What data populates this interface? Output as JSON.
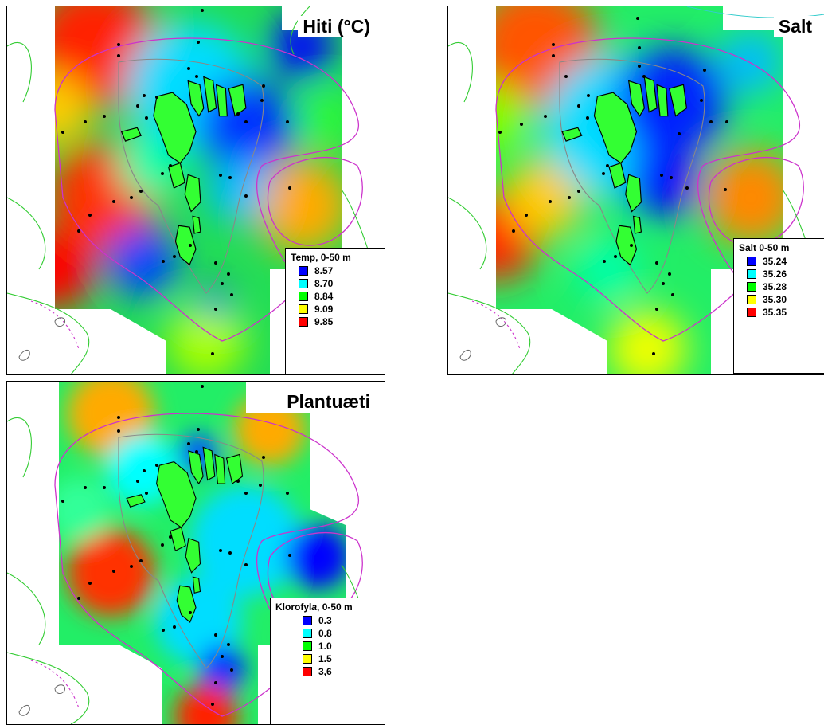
{
  "panels": [
    {
      "title": "Hiti (°C)",
      "legend_title": "Temp, 0-50 m",
      "legend": [
        {
          "label": "8.57",
          "color": "#0000ff"
        },
        {
          "label": "8.70",
          "color": "#00ffff"
        },
        {
          "label": "8.84",
          "color": "#00ff00"
        },
        {
          "label": "9.09",
          "color": "#ffff00"
        },
        {
          "label": "9.85",
          "color": "#ff0000"
        }
      ]
    },
    {
      "title": "Salt",
      "legend_title": "Salt 0-50 m",
      "legend": [
        {
          "label": "35.24",
          "color": "#0000ff"
        },
        {
          "label": "35.26",
          "color": "#00ffff"
        },
        {
          "label": "35.28",
          "color": "#00ff00"
        },
        {
          "label": "35.30",
          "color": "#ffff00"
        },
        {
          "label": "35.35",
          "color": "#ff0000"
        }
      ]
    },
    {
      "title": "Plantuæti",
      "legend_title_parts": [
        "Klorofyl",
        "a",
        ", 0-50 m"
      ],
      "legend": [
        {
          "label": "0.3",
          "color": "#0000ff"
        },
        {
          "label": "0.8",
          "color": "#00ffff"
        },
        {
          "label": "1.0",
          "color": "#00ff00"
        },
        {
          "label": "1.5",
          "color": "#ffff00"
        },
        {
          "label": "3,6",
          "color": "#ff0000"
        }
      ]
    }
  ]
}
